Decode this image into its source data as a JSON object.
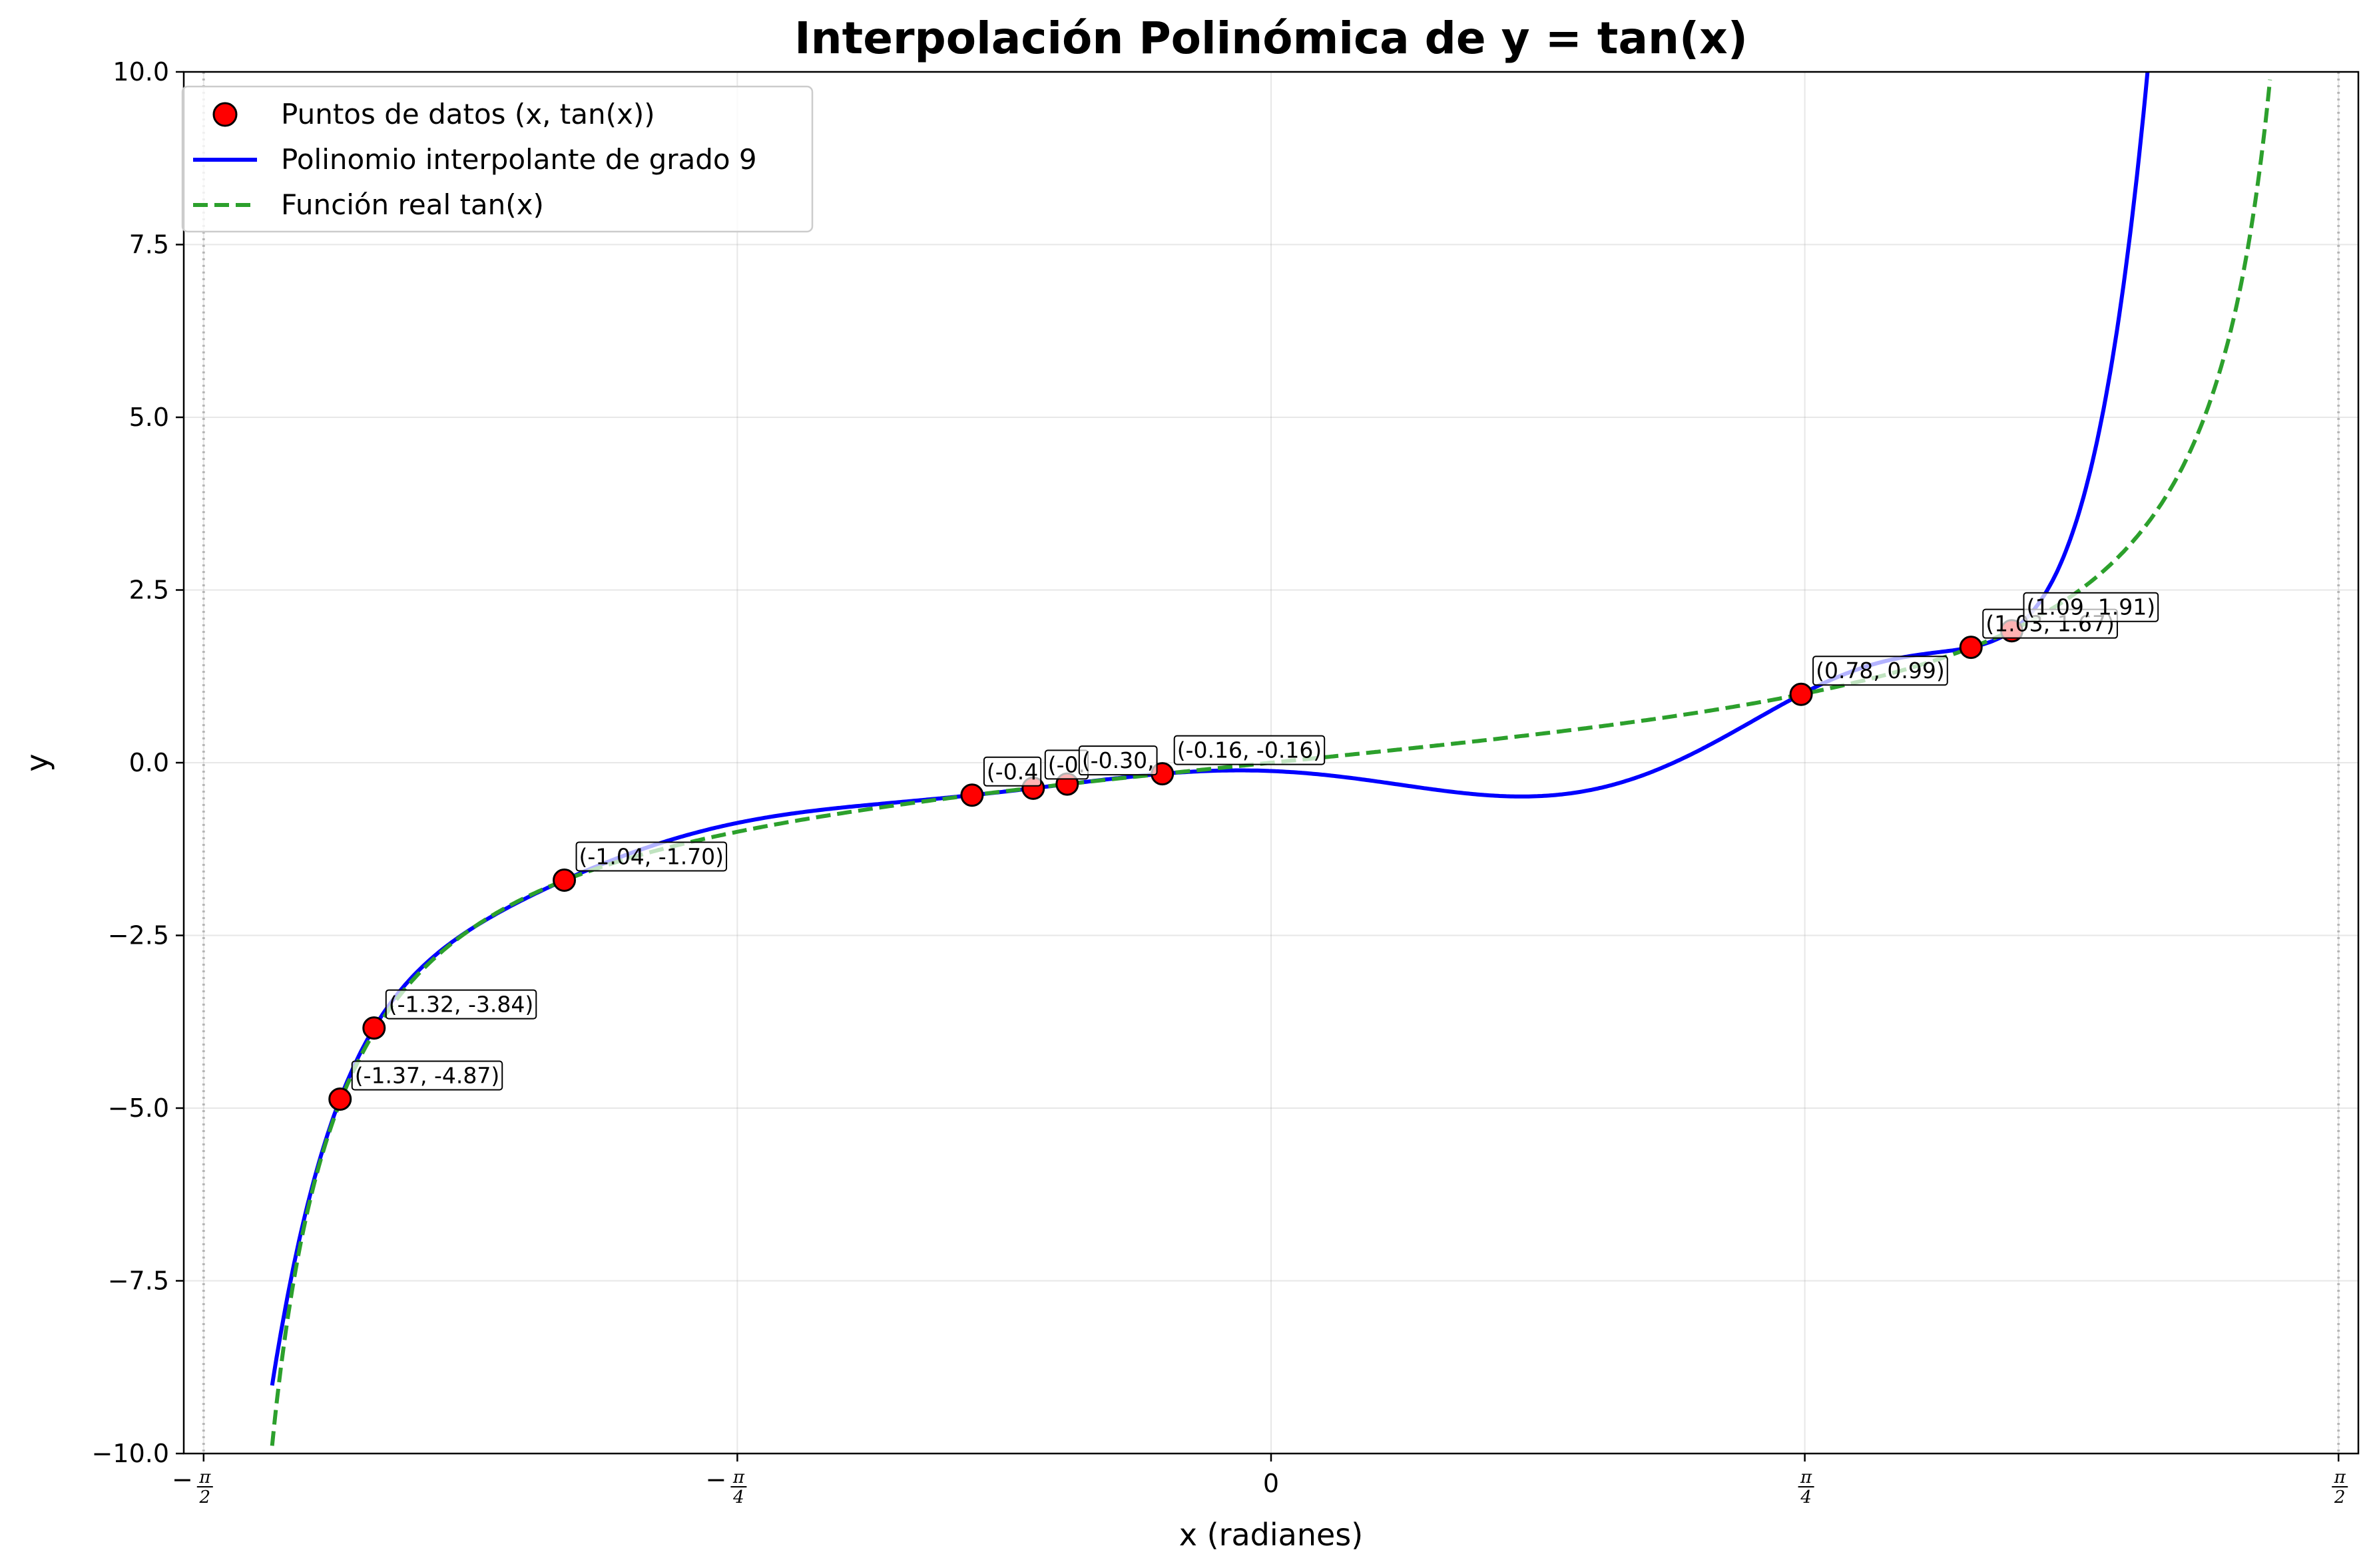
{
  "chart_data": {
    "type": "line",
    "title": "Interpolación Polinómica de y = tan(x)",
    "xlabel": "x (radianes)",
    "ylabel": "y",
    "xlim": [
      -1.6,
      1.6
    ],
    "ylim": [
      -10,
      10
    ],
    "grid": true,
    "legend_position": "top-left",
    "x_ticks": [
      {
        "value": -1.5708,
        "sign": "−",
        "num": "π",
        "den": "2"
      },
      {
        "value": -0.7854,
        "sign": "−",
        "num": "π",
        "den": "4"
      },
      {
        "value": 0,
        "text": "0"
      },
      {
        "value": 0.7854,
        "sign": "",
        "num": "π",
        "den": "4"
      },
      {
        "value": 1.5708,
        "sign": "",
        "num": "π",
        "den": "2"
      }
    ],
    "y_ticks": [
      {
        "value": 10,
        "label": "10.0"
      },
      {
        "value": 7.5,
        "label": "7.5"
      },
      {
        "value": 5,
        "label": "5.0"
      },
      {
        "value": 2.5,
        "label": "2.5"
      },
      {
        "value": 0,
        "label": "0.0"
      },
      {
        "value": -2.5,
        "label": "−2.5"
      },
      {
        "value": -5,
        "label": "−5.0"
      },
      {
        "value": -7.5,
        "label": "−7.5"
      },
      {
        "value": -10,
        "label": "−10.0"
      }
    ],
    "vertical_lines": [
      -1.5708,
      1.5708
    ],
    "legend": [
      {
        "label": "Puntos de datos (x, tan(x))",
        "kind": "marker",
        "color": "#ff0000"
      },
      {
        "label": "Polinomio interpolante de grado 9",
        "kind": "solid",
        "color": "#0000ff"
      },
      {
        "label": "Función real tan(x)",
        "kind": "dashed",
        "color": "#2ca02c"
      }
    ],
    "series": [
      {
        "name": "Puntos de datos (x, tan(x))",
        "style": "scatter",
        "color": "#ff0000",
        "points": [
          {
            "x": -1.37,
            "y": -4.87,
            "label": "(-1.37, -4.87)"
          },
          {
            "x": -1.32,
            "y": -3.84,
            "label": "(-1.32, -3.84)"
          },
          {
            "x": -1.04,
            "y": -1.7,
            "label": "(-1.04, -1.70)"
          },
          {
            "x": -0.44,
            "y": -0.47,
            "label": "(-0.4"
          },
          {
            "x": -0.35,
            "y": -0.37,
            "label": "(-0."
          },
          {
            "x": -0.3,
            "y": -0.31,
            "label": "(-0.30,"
          },
          {
            "x": -0.16,
            "y": -0.16,
            "label": "(-0.16, -0.16)"
          },
          {
            "x": 0.78,
            "y": 0.99,
            "label": "(0.78, 0.99)"
          },
          {
            "x": 1.03,
            "y": 1.67,
            "label": "(1.03, 1.67)"
          },
          {
            "x": 1.09,
            "y": 1.91,
            "label": "(1.09, 1.91)"
          }
        ]
      },
      {
        "name": "Polinomio interpolante de grado 9",
        "style": "solid",
        "color": "#0000ff",
        "x_range": [
          -1.47,
          1.47
        ]
      },
      {
        "name": "Función real tan(x)",
        "style": "dashed",
        "color": "#2ca02c",
        "x_range": [
          -1.47,
          1.47
        ]
      }
    ]
  }
}
